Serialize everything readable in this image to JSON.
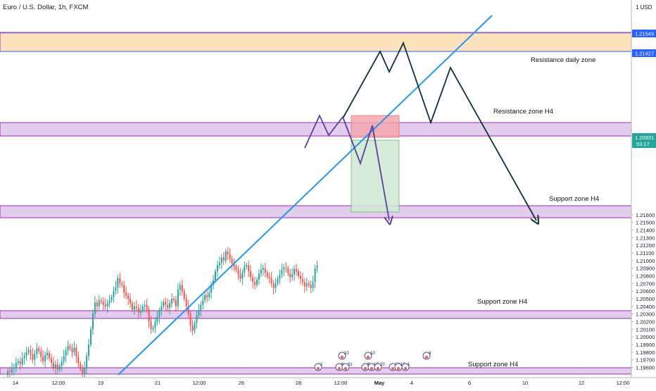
{
  "header": {
    "symbol_title": "Euro / U.S. Dollar, 1h, FXCM",
    "currency_label": "1 USD"
  },
  "price_axis": {
    "ticks": [
      "1.21600",
      "1.21500",
      "1.21400",
      "1.21300",
      "1.21200",
      "1.21100",
      "1.21000",
      "1.20900",
      "1.20800",
      "1.20700",
      "1.20600",
      "1.20500",
      "1.20400",
      "1.20300",
      "1.20200",
      "1.20100",
      "1.20000",
      "1.19900",
      "1.19800",
      "1.19700",
      "1.19600"
    ],
    "tag_upper": "1.21549",
    "tag_lower": "1.21427",
    "current_price": "1.20931",
    "countdown": "53:17"
  },
  "time_axis": {
    "ticks": [
      "14",
      "12:00",
      "19",
      "21",
      "12:00",
      "26",
      "28",
      "12:00",
      "May",
      "4",
      "6",
      "10",
      "12",
      "12:00"
    ]
  },
  "annotations": {
    "resistance_daily": "Resistance daily zone",
    "resistance_h4": "Resistance zone H4",
    "support_h4_1": "Support zone H4",
    "support_h4_2": "Support zone H4",
    "support_h4_3": "Support zone H4"
  },
  "event_markers": {
    "labels": [
      "2",
      "10",
      "6",
      "31",
      "10",
      "8",
      "10",
      "20",
      "10",
      "10",
      "1",
      "4"
    ]
  },
  "colors": {
    "bull_candle": "#26a69a",
    "bear_candle": "#ef5350",
    "trendline": "#2196f3",
    "zone_purple_fill": "#e3cdef",
    "zone_purple_border": "#9c27b0",
    "zone_orange_fill": "#fde3bd",
    "projection_dark": "#0f2f3a",
    "projection_purple": "#5b3fa3",
    "stop_box": "#f4a6ad",
    "target_box": "#cfe9d2"
  },
  "chart_data": {
    "type": "candlestick",
    "title": "Euro / U.S. Dollar, 1h, FXCM",
    "ylim": [
      1.1953,
      1.2175
    ],
    "grid": false,
    "zones": [
      {
        "label": "Resistance daily zone",
        "from": 1.21427,
        "to": 1.21549
      },
      {
        "label": "Resistance zone H4",
        "from": 1.2093,
        "to": 1.2101
      },
      {
        "label": "Support zone H4",
        "from": 1.2046,
        "to": 1.2053
      },
      {
        "label": "Support zone H4",
        "from": 1.1986,
        "to": 1.199
      },
      {
        "label": "Support zone H4",
        "from": 1.1953,
        "to": 1.1957
      }
    ],
    "trendline": {
      "from": {
        "price": 1.1953,
        "date": "Apr 19"
      },
      "to": {
        "price": 1.217,
        "date": "May 4"
      }
    },
    "trade_box": {
      "entry": 1.20931,
      "stop": 1.2106,
      "target": 1.2049
    },
    "projection_dark": [
      1.209,
      1.2144,
      1.2132,
      1.2149,
      1.2108,
      1.2133,
      1.2045
    ],
    "projection_purple": [
      1.2085,
      1.2105,
      1.2093,
      1.2104,
      1.2078,
      1.2044
    ],
    "candles": {
      "first": [
        1.1955,
        1.1954,
        1.1958,
        1.196,
        1.1966,
        1.1968,
        1.1964,
        1.1972,
        1.1975,
        1.198,
        1.1983,
        1.1977,
        1.197,
        1.1978,
        1.1985,
        1.1981,
        1.1974,
        1.1968,
        1.1976,
        1.1979,
        1.1972,
        1.1966,
        1.196,
        1.1964,
        1.1957,
        1.1962,
        1.1968,
        1.1975,
        1.1982,
        1.1988,
        1.1985,
        1.198,
        1.1986,
        1.1974,
        1.1965,
        1.1958,
        1.1952,
        1.196,
        1.1975,
        1.199,
        1.201,
        1.203,
        1.2045,
        1.204,
        1.2048,
        1.2046,
        1.2042,
        1.204,
        1.2044,
        1.2048,
        1.2052,
        1.206,
        1.2065,
        1.2077,
        1.207,
        1.2068,
        1.2058,
        1.2054,
        1.205,
        1.2044,
        1.2036,
        1.204,
        1.2038,
        1.2032,
        1.2035,
        1.204,
        1.2042,
        1.2036,
        1.202,
        1.201,
        1.2012,
        1.202,
        1.2026,
        1.2034,
        1.204,
        1.2046,
        1.2042,
        1.2038,
        1.2044,
        1.205,
        1.2048,
        1.204,
        1.2062,
        1.2068,
        1.206,
        1.205,
        1.204,
        1.203,
        1.2015,
        1.2008,
        1.2018,
        1.2028,
        1.2035,
        1.2042,
        1.2048,
        1.2055,
        1.2052,
        1.2058,
        1.2068,
        1.2074,
        1.2086,
        1.2094,
        1.2097,
        1.2104,
        1.21,
        1.2112,
        1.2108,
        1.2102,
        1.2096,
        1.2092,
        1.2088,
        1.2082,
        1.2076,
        1.2084,
        1.2092,
        1.2094,
        1.2086,
        1.2078,
        1.2072,
        1.2068,
        1.2075,
        1.2083,
        1.2088,
        1.209,
        1.2084,
        1.2079,
        1.2077,
        1.207,
        1.2064,
        1.207,
        1.2076,
        1.2082,
        1.2088,
        1.2091,
        1.209,
        1.2083,
        1.2078,
        1.2082,
        1.2089,
        1.2086,
        1.208,
        1.2076,
        1.2072,
        1.2066,
        1.207,
        1.2068,
        1.2064,
        1.2072,
        1.209,
        1.20931
      ]
    }
  }
}
